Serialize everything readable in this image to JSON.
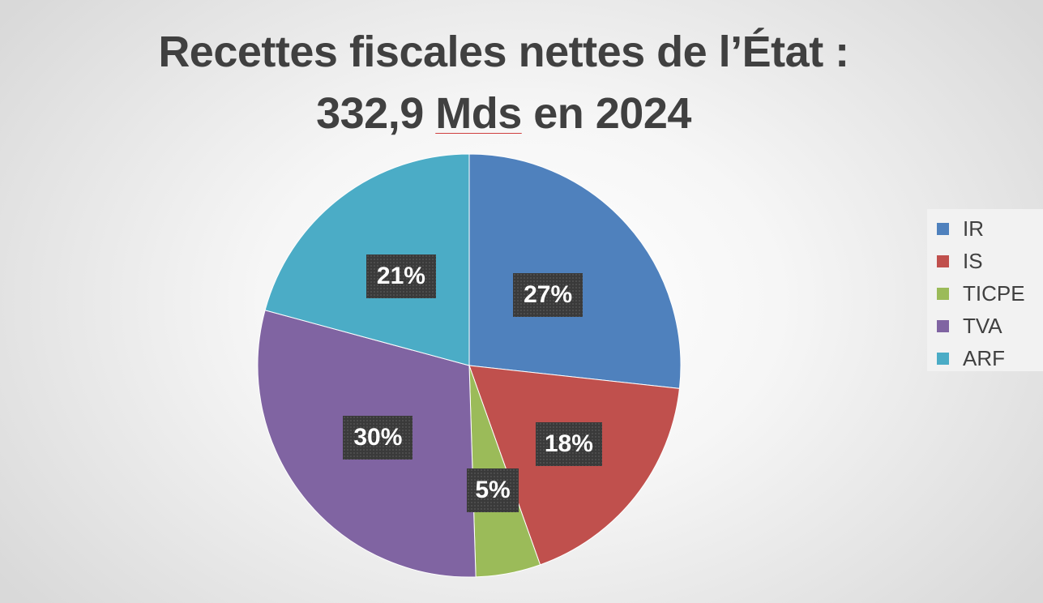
{
  "title": {
    "line1": "Recettes fiscales nettes de l’État :",
    "line2_before": "332,9 ",
    "line2_underlined": "Mds",
    "line2_after": " en 2024"
  },
  "chart_data": {
    "type": "pie",
    "title": "Recettes fiscales nettes de l’État : 332,9 Mds en 2024",
    "legend_position": "right",
    "categories": [
      "IR",
      "IS",
      "TICPE",
      "TVA",
      "ARF"
    ],
    "values": [
      27,
      18,
      5,
      30,
      21
    ],
    "value_labels": [
      "27%",
      "18%",
      "5%",
      "30%",
      "21%"
    ],
    "colors": [
      "#4f81bd",
      "#c0504d",
      "#9bbb59",
      "#8064a2",
      "#4bacc6"
    ],
    "start_angle": "12 o'clock",
    "direction": "clockwise"
  }
}
